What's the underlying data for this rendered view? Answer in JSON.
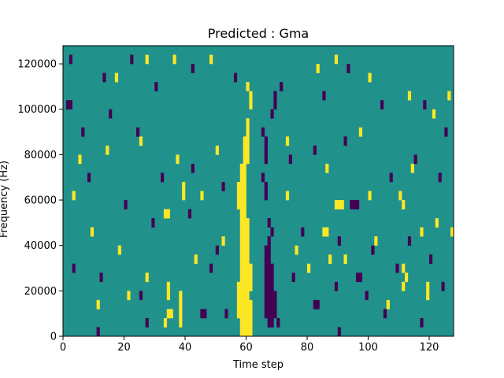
{
  "chart_data": {
    "type": "heatmap",
    "title": "Predicted : Gma",
    "xlabel": "Time step",
    "ylabel": "Frequency (Hz)",
    "xlim": [
      0,
      128
    ],
    "ylim": [
      0,
      128000
    ],
    "xticks": [
      0,
      20,
      40,
      60,
      80,
      100,
      120
    ],
    "yticks": [
      0,
      20000,
      40000,
      60000,
      80000,
      100000,
      120000
    ],
    "xtick_labels": [
      "0",
      "20",
      "40",
      "60",
      "80",
      "100",
      "120"
    ],
    "ytick_labels": [
      "0",
      "20000",
      "40000",
      "60000",
      "80000",
      "100000",
      "120000"
    ],
    "grid": false,
    "colormap": "viridis",
    "background_value": 0.5,
    "colors": {
      "high": "#fde725",
      "mid": "#21918c",
      "low": "#440154"
    },
    "rows": 32,
    "row_height_hz": 4000,
    "cells": [
      {
        "t": 58,
        "f": 0,
        "v": 1
      },
      {
        "t": 59,
        "f": 0,
        "v": 1
      },
      {
        "t": 60,
        "f": 0,
        "v": 1
      },
      {
        "t": 61,
        "f": 0,
        "v": 1
      },
      {
        "t": 58,
        "f": 4000,
        "v": 1
      },
      {
        "t": 59,
        "f": 4000,
        "v": 1
      },
      {
        "t": 60,
        "f": 4000,
        "v": 1
      },
      {
        "t": 61,
        "f": 4000,
        "v": 1
      },
      {
        "t": 57,
        "f": 8000,
        "v": 1
      },
      {
        "t": 58,
        "f": 8000,
        "v": 1
      },
      {
        "t": 59,
        "f": 8000,
        "v": 1
      },
      {
        "t": 60,
        "f": 8000,
        "v": 1
      },
      {
        "t": 61,
        "f": 8000,
        "v": 1
      },
      {
        "t": 57,
        "f": 12000,
        "v": 1
      },
      {
        "t": 58,
        "f": 12000,
        "v": 1
      },
      {
        "t": 59,
        "f": 12000,
        "v": 1
      },
      {
        "t": 60,
        "f": 12000,
        "v": 1
      },
      {
        "t": 61,
        "f": 12000,
        "v": 1
      },
      {
        "t": 57,
        "f": 16000,
        "v": 1
      },
      {
        "t": 58,
        "f": 16000,
        "v": 1
      },
      {
        "t": 59,
        "f": 16000,
        "v": 1
      },
      {
        "t": 60,
        "f": 16000,
        "v": 1
      },
      {
        "t": 57,
        "f": 20000,
        "v": 1
      },
      {
        "t": 58,
        "f": 20000,
        "v": 1
      },
      {
        "t": 59,
        "f": 20000,
        "v": 1
      },
      {
        "t": 60,
        "f": 20000,
        "v": 1
      },
      {
        "t": 61,
        "f": 20000,
        "v": 1
      },
      {
        "t": 58,
        "f": 24000,
        "v": 1
      },
      {
        "t": 59,
        "f": 24000,
        "v": 1
      },
      {
        "t": 60,
        "f": 24000,
        "v": 1
      },
      {
        "t": 61,
        "f": 24000,
        "v": 1
      },
      {
        "t": 58,
        "f": 28000,
        "v": 1
      },
      {
        "t": 59,
        "f": 28000,
        "v": 1
      },
      {
        "t": 60,
        "f": 28000,
        "v": 1
      },
      {
        "t": 61,
        "f": 28000,
        "v": 1
      },
      {
        "t": 58,
        "f": 32000,
        "v": 1
      },
      {
        "t": 59,
        "f": 32000,
        "v": 1
      },
      {
        "t": 60,
        "f": 32000,
        "v": 1
      },
      {
        "t": 58,
        "f": 36000,
        "v": 1
      },
      {
        "t": 59,
        "f": 36000,
        "v": 1
      },
      {
        "t": 60,
        "f": 36000,
        "v": 1
      },
      {
        "t": 58,
        "f": 40000,
        "v": 1
      },
      {
        "t": 59,
        "f": 40000,
        "v": 1
      },
      {
        "t": 60,
        "f": 40000,
        "v": 1
      },
      {
        "t": 58,
        "f": 44000,
        "v": 1
      },
      {
        "t": 59,
        "f": 44000,
        "v": 1
      },
      {
        "t": 60,
        "f": 44000,
        "v": 1
      },
      {
        "t": 58,
        "f": 48000,
        "v": 1
      },
      {
        "t": 59,
        "f": 48000,
        "v": 1
      },
      {
        "t": 60,
        "f": 48000,
        "v": 1
      },
      {
        "t": 58,
        "f": 52000,
        "v": 1
      },
      {
        "t": 59,
        "f": 52000,
        "v": 1
      },
      {
        "t": 57,
        "f": 56000,
        "v": 1
      },
      {
        "t": 58,
        "f": 56000,
        "v": 1
      },
      {
        "t": 59,
        "f": 56000,
        "v": 1
      },
      {
        "t": 57,
        "f": 60000,
        "v": 1
      },
      {
        "t": 58,
        "f": 60000,
        "v": 1
      },
      {
        "t": 59,
        "f": 60000,
        "v": 1
      },
      {
        "t": 57,
        "f": 64000,
        "v": 1
      },
      {
        "t": 58,
        "f": 64000,
        "v": 1
      },
      {
        "t": 59,
        "f": 64000,
        "v": 1
      },
      {
        "t": 58,
        "f": 68000,
        "v": 1
      },
      {
        "t": 59,
        "f": 68000,
        "v": 1
      },
      {
        "t": 58,
        "f": 72000,
        "v": 1
      },
      {
        "t": 59,
        "f": 72000,
        "v": 1
      },
      {
        "t": 59,
        "f": 76000,
        "v": 1
      },
      {
        "t": 60,
        "f": 76000,
        "v": 1
      },
      {
        "t": 59,
        "f": 80000,
        "v": 1
      },
      {
        "t": 60,
        "f": 80000,
        "v": 1
      },
      {
        "t": 59,
        "f": 84000,
        "v": 1
      },
      {
        "t": 60,
        "f": 84000,
        "v": 1
      },
      {
        "t": 60,
        "f": 88000,
        "v": 1
      },
      {
        "t": 60,
        "f": 92000,
        "v": 1
      },
      {
        "t": 61,
        "f": 100000,
        "v": 1
      },
      {
        "t": 61,
        "f": 104000,
        "v": 1
      },
      {
        "t": 60,
        "f": 108000,
        "v": 1
      },
      {
        "t": 67,
        "f": 4000,
        "v": 0
      },
      {
        "t": 68,
        "f": 4000,
        "v": 0
      },
      {
        "t": 66,
        "f": 8000,
        "v": 0
      },
      {
        "t": 67,
        "f": 8000,
        "v": 0
      },
      {
        "t": 68,
        "f": 8000,
        "v": 0
      },
      {
        "t": 69,
        "f": 8000,
        "v": 0
      },
      {
        "t": 66,
        "f": 12000,
        "v": 0
      },
      {
        "t": 67,
        "f": 12000,
        "v": 0
      },
      {
        "t": 68,
        "f": 12000,
        "v": 0
      },
      {
        "t": 69,
        "f": 12000,
        "v": 0
      },
      {
        "t": 66,
        "f": 16000,
        "v": 0
      },
      {
        "t": 67,
        "f": 16000,
        "v": 0
      },
      {
        "t": 68,
        "f": 16000,
        "v": 0
      },
      {
        "t": 69,
        "f": 16000,
        "v": 0
      },
      {
        "t": 66,
        "f": 20000,
        "v": 0
      },
      {
        "t": 67,
        "f": 20000,
        "v": 0
      },
      {
        "t": 68,
        "f": 20000,
        "v": 0
      },
      {
        "t": 66,
        "f": 24000,
        "v": 0
      },
      {
        "t": 67,
        "f": 24000,
        "v": 0
      },
      {
        "t": 68,
        "f": 24000,
        "v": 0
      },
      {
        "t": 66,
        "f": 28000,
        "v": 0
      },
      {
        "t": 67,
        "f": 28000,
        "v": 0
      },
      {
        "t": 68,
        "f": 28000,
        "v": 0
      },
      {
        "t": 66,
        "f": 32000,
        "v": 0
      },
      {
        "t": 67,
        "f": 32000,
        "v": 0
      },
      {
        "t": 66,
        "f": 36000,
        "v": 0
      },
      {
        "t": 67,
        "f": 36000,
        "v": 0
      },
      {
        "t": 67,
        "f": 40000,
        "v": 0
      },
      {
        "t": 68,
        "f": 44000,
        "v": 0
      },
      {
        "t": 67,
        "f": 48000,
        "v": 0
      },
      {
        "t": 66,
        "f": 60000,
        "v": 0
      },
      {
        "t": 65,
        "f": 68000,
        "v": 0
      },
      {
        "t": 66,
        "f": 64000,
        "v": 0
      },
      {
        "t": 66,
        "f": 76000,
        "v": 0
      },
      {
        "t": 66,
        "f": 80000,
        "v": 0
      },
      {
        "t": 66,
        "f": 84000,
        "v": 0
      },
      {
        "t": 65,
        "f": 88000,
        "v": 0
      },
      {
        "t": 68,
        "f": 96000,
        "v": 0
      },
      {
        "t": 69,
        "f": 100000,
        "v": 0
      },
      {
        "t": 69,
        "f": 104000,
        "v": 0
      },
      {
        "t": 94,
        "f": 56000,
        "v": 0
      },
      {
        "t": 95,
        "f": 56000,
        "v": 0
      },
      {
        "t": 96,
        "f": 56000,
        "v": 0
      },
      {
        "t": 89,
        "f": 56000,
        "v": 1
      },
      {
        "t": 90,
        "f": 56000,
        "v": 1
      },
      {
        "t": 91,
        "f": 56000,
        "v": 1
      },
      {
        "t": 1,
        "f": 100000,
        "v": 0
      },
      {
        "t": 2,
        "f": 100000,
        "v": 0
      },
      {
        "t": 45,
        "f": 8000,
        "v": 0
      },
      {
        "t": 46,
        "f": 8000,
        "v": 0
      },
      {
        "t": 82,
        "f": 12000,
        "v": 0
      },
      {
        "t": 83,
        "f": 12000,
        "v": 0
      },
      {
        "t": 96,
        "f": 24000,
        "v": 0
      },
      {
        "t": 97,
        "f": 24000,
        "v": 0
      },
      {
        "t": 33,
        "f": 52000,
        "v": 1
      },
      {
        "t": 34,
        "f": 52000,
        "v": 1
      },
      {
        "t": 34,
        "f": 8000,
        "v": 1
      },
      {
        "t": 35,
        "f": 8000,
        "v": 1
      },
      {
        "t": 33,
        "f": 4000,
        "v": 1
      },
      {
        "t": 38,
        "f": 8000,
        "v": 1
      },
      {
        "t": 38,
        "f": 12000,
        "v": 1
      },
      {
        "t": 38,
        "f": 16000,
        "v": 1
      },
      {
        "t": 38,
        "f": 4000,
        "v": 1
      },
      {
        "t": 34,
        "f": 16000,
        "v": 1
      },
      {
        "t": 34,
        "f": 20000,
        "v": 1
      },
      {
        "t": 39,
        "f": 60000,
        "v": 1
      },
      {
        "t": 39,
        "f": 64000,
        "v": 1
      },
      {
        "t": 85,
        "f": 44000,
        "v": 1
      },
      {
        "t": 86,
        "f": 44000,
        "v": 1
      },
      {
        "t": 111,
        "f": 20000,
        "v": 1
      },
      {
        "t": 112,
        "f": 24000,
        "v": 1
      },
      {
        "t": 111,
        "f": 28000,
        "v": 1
      },
      {
        "t": 110,
        "f": 60000,
        "v": 1
      },
      {
        "t": 111,
        "f": 56000,
        "v": 1
      },
      {
        "t": 119,
        "f": 16000,
        "v": 1
      },
      {
        "t": 119,
        "f": 20000,
        "v": 1
      },
      {
        "t": 5,
        "f": 76000,
        "v": 1
      },
      {
        "t": 14,
        "f": 80000,
        "v": 1
      },
      {
        "t": 25,
        "f": 84000,
        "v": 1
      },
      {
        "t": 37,
        "f": 76000,
        "v": 1
      },
      {
        "t": 50,
        "f": 80000,
        "v": 1
      },
      {
        "t": 73,
        "f": 84000,
        "v": 1
      },
      {
        "t": 86,
        "f": 72000,
        "v": 1
      },
      {
        "t": 97,
        "f": 88000,
        "v": 1
      },
      {
        "t": 114,
        "f": 72000,
        "v": 1
      },
      {
        "t": 121,
        "f": 96000,
        "v": 1
      },
      {
        "t": 126,
        "f": 104000,
        "v": 1
      },
      {
        "t": 17,
        "f": 112000,
        "v": 1
      },
      {
        "t": 27,
        "f": 120000,
        "v": 1
      },
      {
        "t": 36,
        "f": 120000,
        "v": 1
      },
      {
        "t": 48,
        "f": 120000,
        "v": 1
      },
      {
        "t": 83,
        "f": 116000,
        "v": 1
      },
      {
        "t": 89,
        "f": 120000,
        "v": 1
      },
      {
        "t": 100,
        "f": 112000,
        "v": 1
      },
      {
        "t": 113,
        "f": 104000,
        "v": 1
      },
      {
        "t": 3,
        "f": 60000,
        "v": 1
      },
      {
        "t": 9,
        "f": 44000,
        "v": 1
      },
      {
        "t": 18,
        "f": 36000,
        "v": 1
      },
      {
        "t": 27,
        "f": 24000,
        "v": 1
      },
      {
        "t": 43,
        "f": 32000,
        "v": 1
      },
      {
        "t": 52,
        "f": 40000,
        "v": 1
      },
      {
        "t": 76,
        "f": 36000,
        "v": 1
      },
      {
        "t": 80,
        "f": 28000,
        "v": 1
      },
      {
        "t": 92,
        "f": 32000,
        "v": 1
      },
      {
        "t": 102,
        "f": 40000,
        "v": 1
      },
      {
        "t": 106,
        "f": 12000,
        "v": 1
      },
      {
        "t": 117,
        "f": 44000,
        "v": 1
      },
      {
        "t": 122,
        "f": 48000,
        "v": 1
      },
      {
        "t": 127,
        "f": 44000,
        "v": 1
      },
      {
        "t": 11,
        "f": 12000,
        "v": 1
      },
      {
        "t": 21,
        "f": 16000,
        "v": 1
      },
      {
        "t": 45,
        "f": 60000,
        "v": 1
      },
      {
        "t": 73,
        "f": 60000,
        "v": 1
      },
      {
        "t": 87,
        "f": 32000,
        "v": 1
      },
      {
        "t": 100,
        "f": 60000,
        "v": 1
      },
      {
        "t": 2,
        "f": 120000,
        "v": 0
      },
      {
        "t": 13,
        "f": 112000,
        "v": 0
      },
      {
        "t": 22,
        "f": 120000,
        "v": 0
      },
      {
        "t": 30,
        "f": 108000,
        "v": 0
      },
      {
        "t": 42,
        "f": 116000,
        "v": 0
      },
      {
        "t": 56,
        "f": 112000,
        "v": 0
      },
      {
        "t": 71,
        "f": 108000,
        "v": 0
      },
      {
        "t": 85,
        "f": 104000,
        "v": 0
      },
      {
        "t": 93,
        "f": 116000,
        "v": 0
      },
      {
        "t": 104,
        "f": 100000,
        "v": 0
      },
      {
        "t": 118,
        "f": 100000,
        "v": 0
      },
      {
        "t": 125,
        "f": 88000,
        "v": 0
      },
      {
        "t": 6,
        "f": 88000,
        "v": 0
      },
      {
        "t": 15,
        "f": 96000,
        "v": 0
      },
      {
        "t": 24,
        "f": 88000,
        "v": 0
      },
      {
        "t": 32,
        "f": 68000,
        "v": 0
      },
      {
        "t": 42,
        "f": 72000,
        "v": 0
      },
      {
        "t": 52,
        "f": 64000,
        "v": 0
      },
      {
        "t": 74,
        "f": 76000,
        "v": 0
      },
      {
        "t": 82,
        "f": 80000,
        "v": 0
      },
      {
        "t": 92,
        "f": 84000,
        "v": 0
      },
      {
        "t": 107,
        "f": 68000,
        "v": 0
      },
      {
        "t": 115,
        "f": 76000,
        "v": 0
      },
      {
        "t": 123,
        "f": 68000,
        "v": 0
      },
      {
        "t": 8,
        "f": 68000,
        "v": 0
      },
      {
        "t": 20,
        "f": 56000,
        "v": 0
      },
      {
        "t": 29,
        "f": 48000,
        "v": 0
      },
      {
        "t": 41,
        "f": 52000,
        "v": 0
      },
      {
        "t": 50,
        "f": 36000,
        "v": 0
      },
      {
        "t": 78,
        "f": 44000,
        "v": 0
      },
      {
        "t": 90,
        "f": 40000,
        "v": 0
      },
      {
        "t": 101,
        "f": 36000,
        "v": 0
      },
      {
        "t": 113,
        "f": 40000,
        "v": 0
      },
      {
        "t": 120,
        "f": 32000,
        "v": 0
      },
      {
        "t": 3,
        "f": 28000,
        "v": 0
      },
      {
        "t": 12,
        "f": 24000,
        "v": 0
      },
      {
        "t": 25,
        "f": 16000,
        "v": 0
      },
      {
        "t": 48,
        "f": 28000,
        "v": 0
      },
      {
        "t": 75,
        "f": 24000,
        "v": 0
      },
      {
        "t": 89,
        "f": 20000,
        "v": 0
      },
      {
        "t": 99,
        "f": 16000,
        "v": 0
      },
      {
        "t": 109,
        "f": 28000,
        "v": 0
      },
      {
        "t": 124,
        "f": 20000,
        "v": 0
      },
      {
        "t": 11,
        "f": 0,
        "v": 0
      },
      {
        "t": 27,
        "f": 4000,
        "v": 0
      },
      {
        "t": 53,
        "f": 8000,
        "v": 0
      },
      {
        "t": 70,
        "f": 4000,
        "v": 0
      },
      {
        "t": 90,
        "f": 0,
        "v": 0
      },
      {
        "t": 105,
        "f": 8000,
        "v": 0
      },
      {
        "t": 117,
        "f": 4000,
        "v": 0
      }
    ]
  }
}
